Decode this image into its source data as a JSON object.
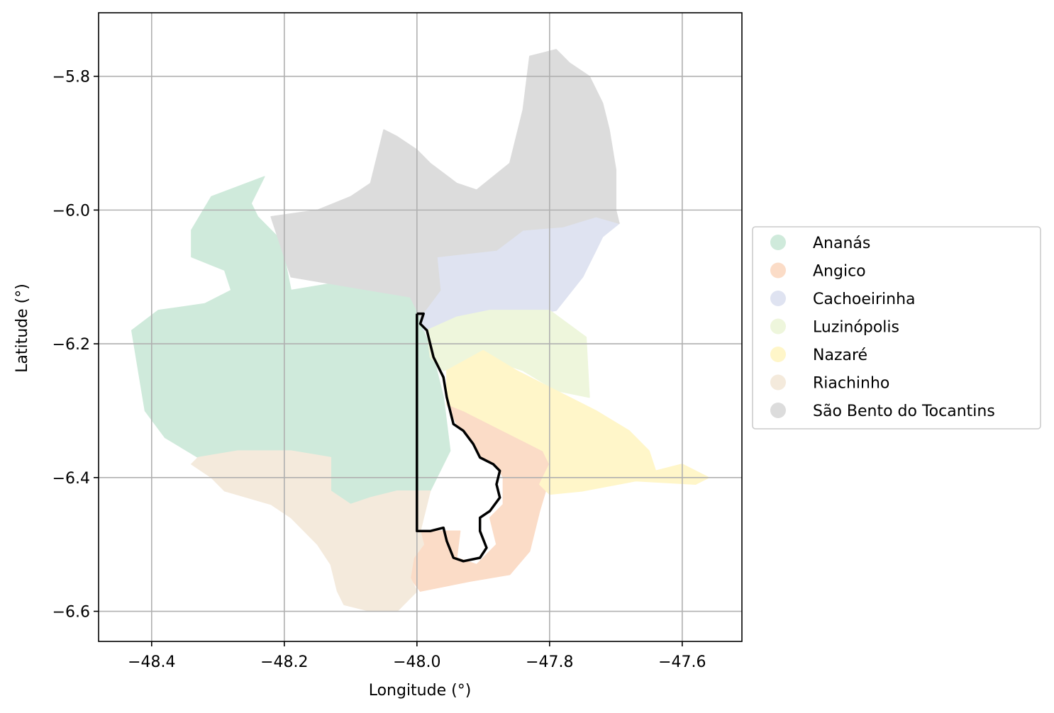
{
  "chart_data": {
    "type": "map",
    "xlabel": "Longitude (°)",
    "ylabel": "Latitude (°)",
    "xlim": [
      -48.48,
      -47.51
    ],
    "ylim": [
      -6.645,
      -5.705
    ],
    "x_ticks": [
      -48.4,
      -48.2,
      -48.0,
      -47.8,
      -47.6
    ],
    "x_tick_labels": [
      "−48.4",
      "−48.2",
      "−48.0",
      "−47.8",
      "−47.6"
    ],
    "y_ticks": [
      -5.8,
      -6.0,
      -6.2,
      -6.4,
      -6.6
    ],
    "y_tick_labels": [
      "−5.8",
      "−6.0",
      "−6.2",
      "−6.4",
      "−6.6"
    ],
    "grid": true,
    "legend_position": "right",
    "regions": [
      {
        "name": "Ananás",
        "color": "#cfeadb",
        "outline": [
          [
            -48.23,
            -5.95
          ],
          [
            -48.31,
            -5.98
          ],
          [
            -48.34,
            -6.03
          ],
          [
            -48.34,
            -6.07
          ],
          [
            -48.29,
            -6.09
          ],
          [
            -48.28,
            -6.12
          ],
          [
            -48.32,
            -6.14
          ],
          [
            -48.39,
            -6.15
          ],
          [
            -48.43,
            -6.18
          ],
          [
            -48.42,
            -6.24
          ],
          [
            -48.41,
            -6.3
          ],
          [
            -48.38,
            -6.34
          ],
          [
            -48.33,
            -6.37
          ],
          [
            -48.27,
            -6.36
          ],
          [
            -48.19,
            -6.36
          ],
          [
            -48.13,
            -6.37
          ],
          [
            -48.13,
            -6.42
          ],
          [
            -48.1,
            -6.44
          ],
          [
            -48.07,
            -6.43
          ],
          [
            -48.03,
            -6.42
          ],
          [
            -47.98,
            -6.42
          ],
          [
            -47.95,
            -6.36
          ],
          [
            -47.955,
            -6.32
          ],
          [
            -47.96,
            -6.28
          ],
          [
            -47.975,
            -6.22
          ],
          [
            -47.99,
            -6.18
          ],
          [
            -47.995,
            -6.16
          ],
          [
            -48.01,
            -6.13
          ],
          [
            -48.07,
            -6.12
          ],
          [
            -48.13,
            -6.11
          ],
          [
            -48.19,
            -6.12
          ],
          [
            -48.2,
            -6.07
          ],
          [
            -48.21,
            -6.04
          ],
          [
            -48.24,
            -6.01
          ],
          [
            -48.25,
            -5.99
          ]
        ]
      },
      {
        "name": "Angico",
        "color": "#fbdcc7",
        "outline": [
          [
            -47.955,
            -6.29
          ],
          [
            -47.94,
            -6.32
          ],
          [
            -47.92,
            -6.34
          ],
          [
            -47.905,
            -6.37
          ],
          [
            -47.88,
            -6.38
          ],
          [
            -47.87,
            -6.4
          ],
          [
            -47.87,
            -6.44
          ],
          [
            -47.89,
            -6.46
          ],
          [
            -47.88,
            -6.5
          ],
          [
            -47.91,
            -6.53
          ],
          [
            -47.94,
            -6.52
          ],
          [
            -47.935,
            -6.48
          ],
          [
            -47.96,
            -6.48
          ],
          [
            -47.995,
            -6.48
          ],
          [
            -47.99,
            -6.5
          ],
          [
            -48.005,
            -6.52
          ],
          [
            -48.01,
            -6.55
          ],
          [
            -47.995,
            -6.57
          ],
          [
            -47.92,
            -6.555
          ],
          [
            -47.86,
            -6.545
          ],
          [
            -47.83,
            -6.51
          ],
          [
            -47.815,
            -6.45
          ],
          [
            -47.8,
            -6.4
          ],
          [
            -47.8,
            -6.38
          ],
          [
            -47.81,
            -6.36
          ],
          [
            -47.86,
            -6.335
          ],
          [
            -47.89,
            -6.32
          ],
          [
            -47.93,
            -6.3
          ]
        ]
      },
      {
        "name": "Cachoeirinha",
        "color": "#dfe3f1",
        "outline": [
          [
            -47.97,
            -6.07
          ],
          [
            -47.88,
            -6.06
          ],
          [
            -47.84,
            -6.03
          ],
          [
            -47.78,
            -6.025
          ],
          [
            -47.73,
            -6.01
          ],
          [
            -47.695,
            -6.02
          ],
          [
            -47.72,
            -6.04
          ],
          [
            -47.73,
            -6.06
          ],
          [
            -47.75,
            -6.1
          ],
          [
            -47.79,
            -6.15
          ],
          [
            -47.84,
            -6.16
          ],
          [
            -47.89,
            -6.15
          ],
          [
            -47.94,
            -6.17
          ],
          [
            -47.99,
            -6.18
          ],
          [
            -47.995,
            -6.16
          ],
          [
            -47.965,
            -6.12
          ]
        ]
      },
      {
        "name": "Luzinópolis",
        "color": "#eef6dc",
        "outline": [
          [
            -47.985,
            -6.18
          ],
          [
            -47.94,
            -6.16
          ],
          [
            -47.89,
            -6.15
          ],
          [
            -47.8,
            -6.15
          ],
          [
            -47.745,
            -6.19
          ],
          [
            -47.74,
            -6.28
          ],
          [
            -47.79,
            -6.27
          ],
          [
            -47.84,
            -6.24
          ],
          [
            -47.9,
            -6.22
          ],
          [
            -47.96,
            -6.24
          ],
          [
            -47.98,
            -6.22
          ]
        ]
      },
      {
        "name": "Nazaré",
        "color": "#fff6c9",
        "outline": [
          [
            -47.955,
            -6.24
          ],
          [
            -47.9,
            -6.21
          ],
          [
            -47.85,
            -6.24
          ],
          [
            -47.8,
            -6.265
          ],
          [
            -47.73,
            -6.3
          ],
          [
            -47.68,
            -6.33
          ],
          [
            -47.65,
            -6.36
          ],
          [
            -47.64,
            -6.39
          ],
          [
            -47.6,
            -6.38
          ],
          [
            -47.56,
            -6.4
          ],
          [
            -47.58,
            -6.41
          ],
          [
            -47.67,
            -6.405
          ],
          [
            -47.75,
            -6.42
          ],
          [
            -47.8,
            -6.425
          ],
          [
            -47.815,
            -6.41
          ],
          [
            -47.8,
            -6.38
          ],
          [
            -47.81,
            -6.36
          ],
          [
            -47.86,
            -6.335
          ],
          [
            -47.89,
            -6.32
          ],
          [
            -47.93,
            -6.3
          ],
          [
            -47.955,
            -6.29
          ]
        ]
      },
      {
        "name": "Riachinho",
        "color": "#f4eadc",
        "outline": [
          [
            -48.34,
            -6.38
          ],
          [
            -48.31,
            -6.4
          ],
          [
            -48.29,
            -6.42
          ],
          [
            -48.22,
            -6.44
          ],
          [
            -48.19,
            -6.46
          ],
          [
            -48.15,
            -6.5
          ],
          [
            -48.13,
            -6.53
          ],
          [
            -48.12,
            -6.57
          ],
          [
            -48.11,
            -6.59
          ],
          [
            -48.07,
            -6.6
          ],
          [
            -48.03,
            -6.6
          ],
          [
            -48.0,
            -6.57
          ],
          [
            -48.01,
            -6.55
          ],
          [
            -48.005,
            -6.52
          ],
          [
            -47.99,
            -6.5
          ],
          [
            -47.995,
            -6.48
          ],
          [
            -47.98,
            -6.42
          ],
          [
            -48.03,
            -6.42
          ],
          [
            -48.07,
            -6.43
          ],
          [
            -48.1,
            -6.44
          ],
          [
            -48.13,
            -6.42
          ],
          [
            -48.13,
            -6.37
          ],
          [
            -48.19,
            -6.36
          ],
          [
            -48.27,
            -6.36
          ],
          [
            -48.33,
            -6.37
          ]
        ]
      },
      {
        "name": "São Bento do Tocantins",
        "color": "#dcdcdc",
        "outline": [
          [
            -48.22,
            -6.01
          ],
          [
            -48.15,
            -6.0
          ],
          [
            -48.1,
            -5.98
          ],
          [
            -48.07,
            -5.96
          ],
          [
            -48.06,
            -5.92
          ],
          [
            -48.05,
            -5.88
          ],
          [
            -48.03,
            -5.89
          ],
          [
            -48.0,
            -5.91
          ],
          [
            -47.98,
            -5.93
          ],
          [
            -47.94,
            -5.96
          ],
          [
            -47.91,
            -5.97
          ],
          [
            -47.86,
            -5.93
          ],
          [
            -47.84,
            -5.85
          ],
          [
            -47.83,
            -5.77
          ],
          [
            -47.79,
            -5.76
          ],
          [
            -47.77,
            -5.78
          ],
          [
            -47.74,
            -5.8
          ],
          [
            -47.72,
            -5.84
          ],
          [
            -47.71,
            -5.88
          ],
          [
            -47.7,
            -5.94
          ],
          [
            -47.7,
            -6.0
          ],
          [
            -47.695,
            -6.02
          ],
          [
            -47.73,
            -6.01
          ],
          [
            -47.78,
            -6.025
          ],
          [
            -47.84,
            -6.03
          ],
          [
            -47.88,
            -6.06
          ],
          [
            -47.97,
            -6.07
          ],
          [
            -47.965,
            -6.12
          ],
          [
            -47.995,
            -6.16
          ],
          [
            -48.01,
            -6.13
          ],
          [
            -48.07,
            -6.12
          ],
          [
            -48.13,
            -6.11
          ],
          [
            -48.19,
            -6.1
          ],
          [
            -48.2,
            -6.07
          ],
          [
            -48.21,
            -6.04
          ]
        ]
      }
    ],
    "highlight_outline": [
      [
        -48.0,
        -6.155
      ],
      [
        -47.99,
        -6.155
      ],
      [
        -47.995,
        -6.17
      ],
      [
        -47.985,
        -6.18
      ],
      [
        -47.98,
        -6.2
      ],
      [
        -47.975,
        -6.22
      ],
      [
        -47.97,
        -6.23
      ],
      [
        -47.96,
        -6.25
      ],
      [
        -47.955,
        -6.28
      ],
      [
        -47.95,
        -6.3
      ],
      [
        -47.945,
        -6.32
      ],
      [
        -47.93,
        -6.33
      ],
      [
        -47.915,
        -6.35
      ],
      [
        -47.905,
        -6.37
      ],
      [
        -47.885,
        -6.38
      ],
      [
        -47.875,
        -6.39
      ],
      [
        -47.88,
        -6.41
      ],
      [
        -47.875,
        -6.43
      ],
      [
        -47.89,
        -6.45
      ],
      [
        -47.905,
        -6.46
      ],
      [
        -47.905,
        -6.48
      ],
      [
        -47.895,
        -6.505
      ],
      [
        -47.905,
        -6.52
      ],
      [
        -47.93,
        -6.525
      ],
      [
        -47.945,
        -6.52
      ],
      [
        -47.955,
        -6.495
      ],
      [
        -47.96,
        -6.475
      ],
      [
        -47.98,
        -6.48
      ],
      [
        -47.995,
        -6.48
      ],
      [
        -48.0,
        -6.48
      ],
      [
        -48.0,
        -6.155
      ]
    ]
  }
}
